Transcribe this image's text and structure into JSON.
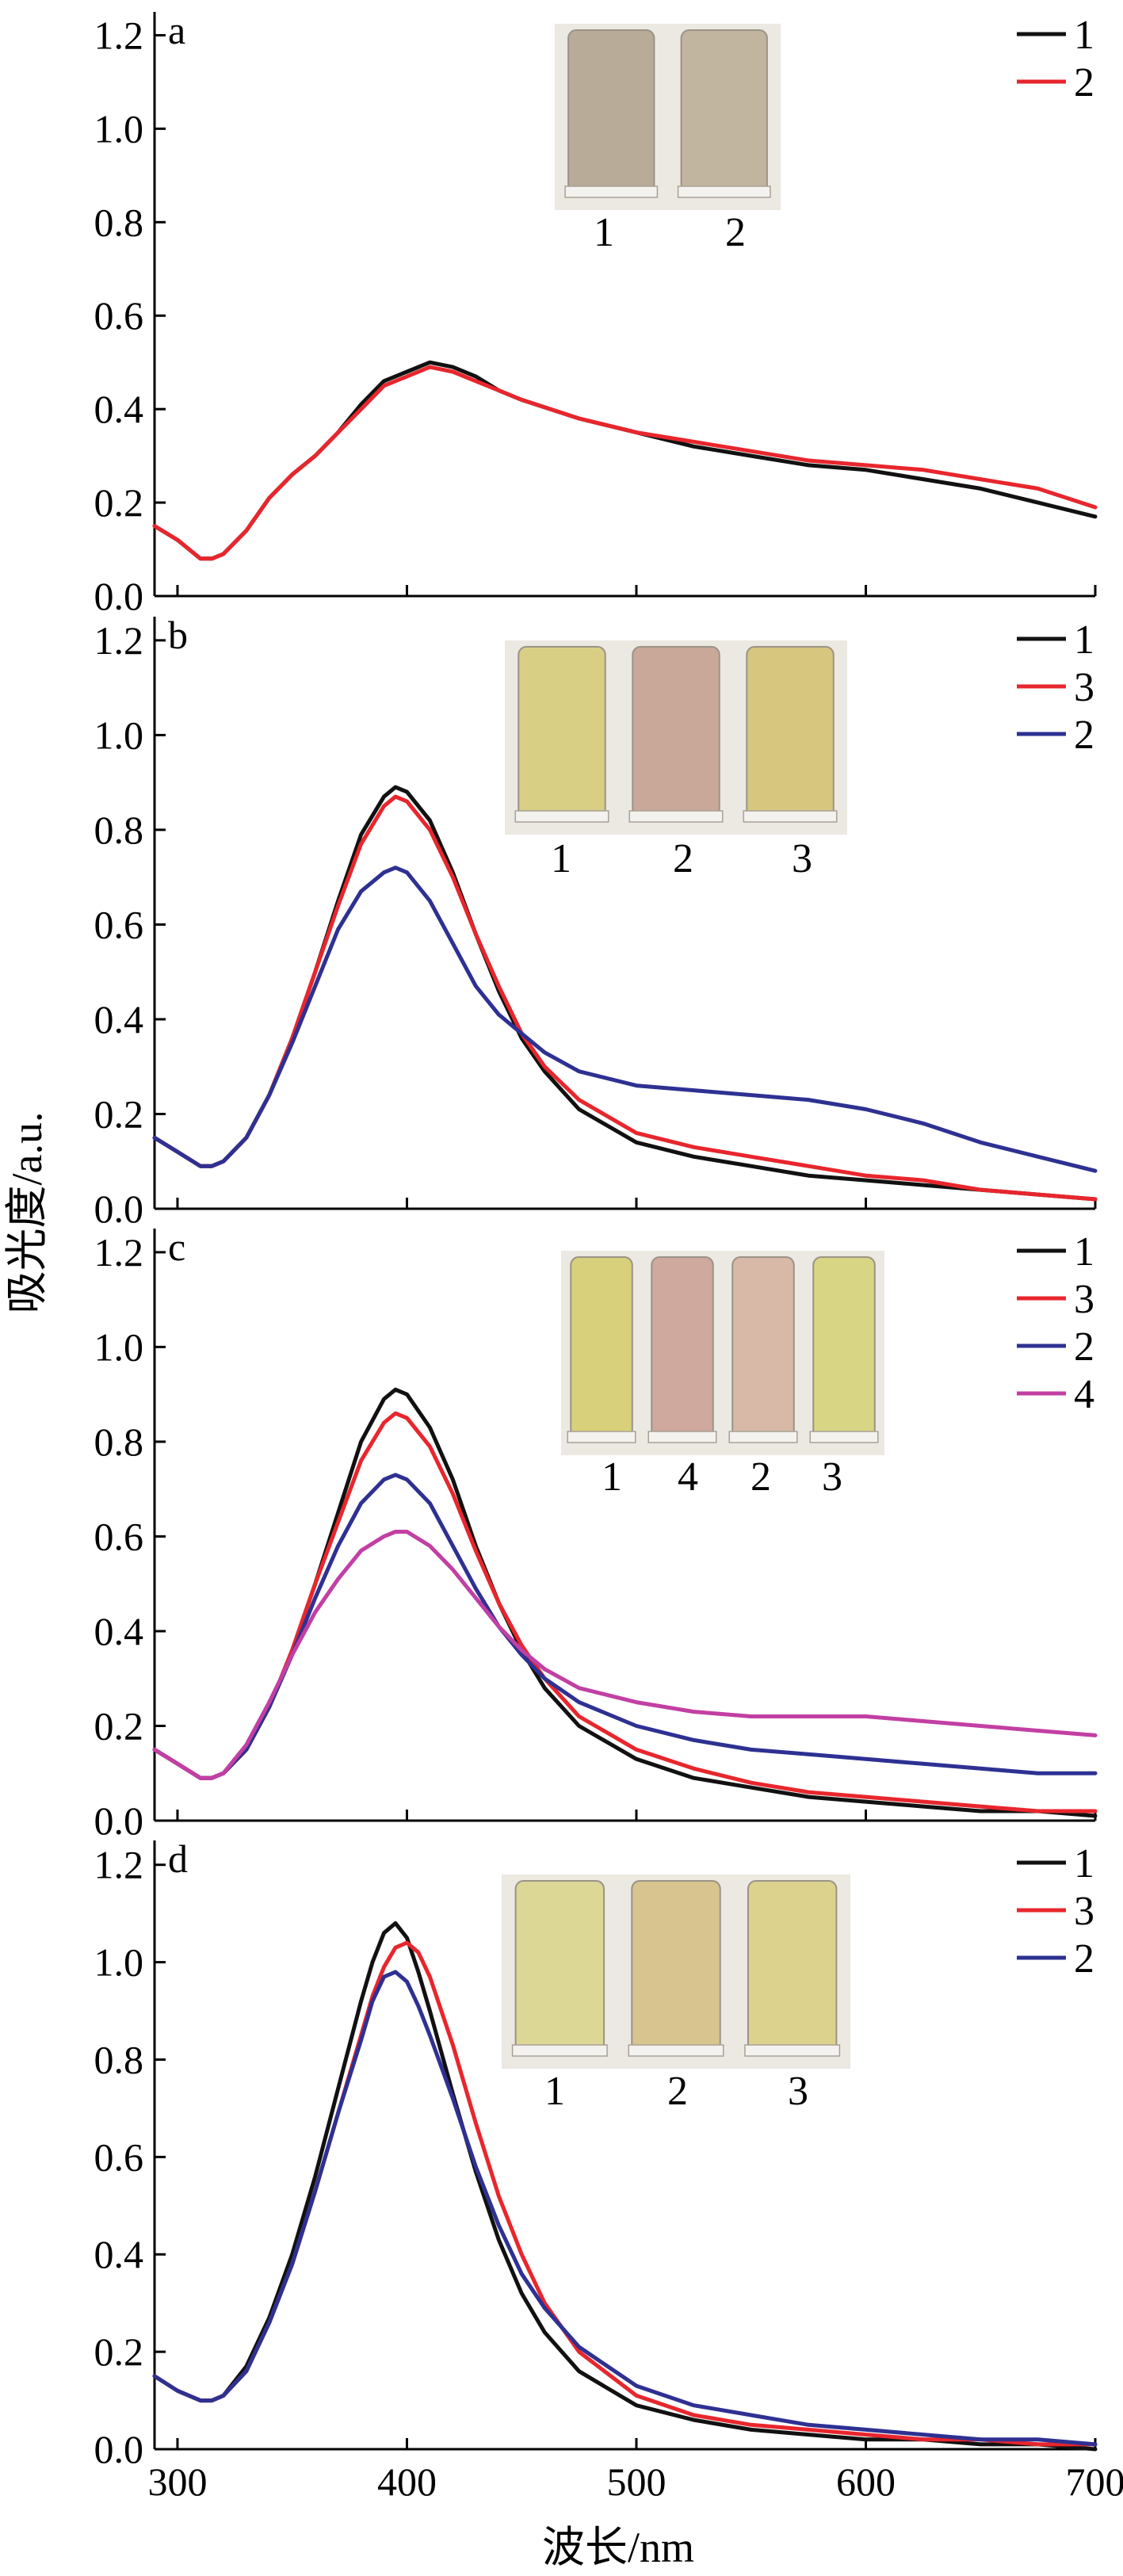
{
  "figure": {
    "xlabel": "波长/nm",
    "ylabel": "吸光度/a.u.",
    "xlim": [
      290,
      700
    ],
    "ylim": [
      0,
      1.25
    ],
    "xticks": [
      "300",
      "400",
      "500",
      "600",
      "700"
    ],
    "yticks": [
      "0.0",
      "0.2",
      "0.4",
      "0.6",
      "0.8",
      "1.0",
      "1.2"
    ],
    "colors": {
      "1": "#111111",
      "2": "#e8262d",
      "3": "#e8262d",
      "2b": "#2e3192",
      "4": "#c23fa3"
    }
  },
  "chart_data": [
    {
      "type": "line",
      "panel": "a",
      "x": [
        290,
        300,
        310,
        315,
        320,
        330,
        340,
        350,
        360,
        370,
        380,
        390,
        400,
        410,
        420,
        430,
        440,
        450,
        475,
        500,
        525,
        550,
        575,
        600,
        625,
        650,
        675,
        700
      ],
      "series": [
        {
          "name": "1",
          "color": "#111111",
          "values": [
            0.15,
            0.12,
            0.08,
            0.08,
            0.09,
            0.14,
            0.21,
            0.26,
            0.3,
            0.35,
            0.41,
            0.46,
            0.48,
            0.5,
            0.49,
            0.47,
            0.44,
            0.42,
            0.38,
            0.35,
            0.32,
            0.3,
            0.28,
            0.27,
            0.25,
            0.23,
            0.2,
            0.17
          ]
        },
        {
          "name": "2",
          "color": "#e8262d",
          "values": [
            0.15,
            0.12,
            0.08,
            0.08,
            0.09,
            0.14,
            0.21,
            0.26,
            0.3,
            0.35,
            0.4,
            0.45,
            0.47,
            0.49,
            0.48,
            0.46,
            0.44,
            0.42,
            0.38,
            0.35,
            0.33,
            0.31,
            0.29,
            0.28,
            0.27,
            0.25,
            0.23,
            0.19
          ]
        }
      ],
      "legend": [
        "1",
        "2"
      ],
      "inset_labels": [
        "1",
        "2"
      ]
    },
    {
      "type": "line",
      "panel": "b",
      "x": [
        290,
        300,
        310,
        315,
        320,
        330,
        340,
        350,
        360,
        370,
        380,
        390,
        395,
        400,
        410,
        420,
        430,
        440,
        450,
        460,
        475,
        500,
        525,
        550,
        575,
        600,
        625,
        650,
        675,
        700
      ],
      "series": [
        {
          "name": "1",
          "color": "#111111",
          "values": [
            0.15,
            0.12,
            0.09,
            0.09,
            0.1,
            0.15,
            0.24,
            0.36,
            0.5,
            0.65,
            0.79,
            0.87,
            0.89,
            0.88,
            0.82,
            0.71,
            0.58,
            0.46,
            0.36,
            0.29,
            0.21,
            0.14,
            0.11,
            0.09,
            0.07,
            0.06,
            0.05,
            0.04,
            0.03,
            0.02
          ]
        },
        {
          "name": "3",
          "color": "#e8262d",
          "values": [
            0.15,
            0.12,
            0.09,
            0.09,
            0.1,
            0.15,
            0.24,
            0.36,
            0.5,
            0.64,
            0.77,
            0.85,
            0.87,
            0.86,
            0.8,
            0.7,
            0.58,
            0.47,
            0.37,
            0.3,
            0.23,
            0.16,
            0.13,
            0.11,
            0.09,
            0.07,
            0.06,
            0.04,
            0.03,
            0.02
          ]
        },
        {
          "name": "2",
          "color": "#2e3192",
          "values": [
            0.15,
            0.12,
            0.09,
            0.09,
            0.1,
            0.15,
            0.24,
            0.35,
            0.47,
            0.59,
            0.67,
            0.71,
            0.72,
            0.71,
            0.65,
            0.56,
            0.47,
            0.41,
            0.37,
            0.33,
            0.29,
            0.26,
            0.25,
            0.24,
            0.23,
            0.21,
            0.18,
            0.14,
            0.11,
            0.08
          ]
        }
      ],
      "legend": [
        "1",
        "3",
        "2"
      ],
      "inset_labels": [
        "1",
        "2",
        "3"
      ]
    },
    {
      "type": "line",
      "panel": "c",
      "x": [
        290,
        300,
        310,
        315,
        320,
        330,
        340,
        350,
        360,
        370,
        380,
        390,
        395,
        400,
        410,
        420,
        430,
        440,
        450,
        460,
        475,
        500,
        525,
        550,
        575,
        600,
        625,
        650,
        675,
        700
      ],
      "series": [
        {
          "name": "1",
          "color": "#111111",
          "values": [
            0.15,
            0.12,
            0.09,
            0.09,
            0.1,
            0.15,
            0.24,
            0.36,
            0.5,
            0.65,
            0.8,
            0.89,
            0.91,
            0.9,
            0.83,
            0.72,
            0.58,
            0.46,
            0.36,
            0.28,
            0.2,
            0.13,
            0.09,
            0.07,
            0.05,
            0.04,
            0.03,
            0.02,
            0.02,
            0.01
          ]
        },
        {
          "name": "3",
          "color": "#e8262d",
          "values": [
            0.15,
            0.12,
            0.09,
            0.09,
            0.1,
            0.15,
            0.24,
            0.36,
            0.5,
            0.63,
            0.76,
            0.84,
            0.86,
            0.85,
            0.79,
            0.69,
            0.57,
            0.46,
            0.37,
            0.3,
            0.22,
            0.15,
            0.11,
            0.08,
            0.06,
            0.05,
            0.04,
            0.03,
            0.02,
            0.02
          ]
        },
        {
          "name": "2",
          "color": "#2e3192",
          "values": [
            0.15,
            0.12,
            0.09,
            0.09,
            0.1,
            0.15,
            0.24,
            0.35,
            0.47,
            0.58,
            0.67,
            0.72,
            0.73,
            0.72,
            0.67,
            0.58,
            0.49,
            0.41,
            0.35,
            0.3,
            0.25,
            0.2,
            0.17,
            0.15,
            0.14,
            0.13,
            0.12,
            0.11,
            0.1,
            0.1
          ]
        },
        {
          "name": "4",
          "color": "#c23fa3",
          "values": [
            0.15,
            0.12,
            0.09,
            0.09,
            0.1,
            0.16,
            0.25,
            0.35,
            0.44,
            0.51,
            0.57,
            0.6,
            0.61,
            0.61,
            0.58,
            0.53,
            0.47,
            0.41,
            0.36,
            0.32,
            0.28,
            0.25,
            0.23,
            0.22,
            0.22,
            0.22,
            0.21,
            0.2,
            0.19,
            0.18
          ]
        }
      ],
      "legend": [
        "1",
        "3",
        "2",
        "4"
      ],
      "inset_labels": [
        "1",
        "4",
        "2",
        "3"
      ]
    },
    {
      "type": "line",
      "panel": "d",
      "x": [
        290,
        300,
        310,
        315,
        320,
        330,
        340,
        350,
        360,
        370,
        380,
        385,
        390,
        395,
        400,
        405,
        410,
        420,
        430,
        440,
        450,
        460,
        475,
        500,
        525,
        550,
        575,
        600,
        625,
        650,
        675,
        700
      ],
      "series": [
        {
          "name": "1",
          "color": "#111111",
          "values": [
            0.15,
            0.12,
            0.1,
            0.1,
            0.11,
            0.17,
            0.27,
            0.4,
            0.56,
            0.74,
            0.92,
            1.0,
            1.06,
            1.08,
            1.05,
            0.98,
            0.9,
            0.73,
            0.57,
            0.43,
            0.32,
            0.24,
            0.16,
            0.09,
            0.06,
            0.04,
            0.03,
            0.02,
            0.02,
            0.01,
            0.01,
            0.0
          ]
        },
        {
          "name": "3",
          "color": "#e8262d",
          "values": [
            0.15,
            0.12,
            0.1,
            0.1,
            0.11,
            0.16,
            0.26,
            0.38,
            0.53,
            0.69,
            0.85,
            0.93,
            0.99,
            1.03,
            1.04,
            1.02,
            0.97,
            0.83,
            0.67,
            0.52,
            0.4,
            0.3,
            0.2,
            0.11,
            0.07,
            0.05,
            0.04,
            0.03,
            0.02,
            0.02,
            0.01,
            0.01
          ]
        },
        {
          "name": "2",
          "color": "#2e3192",
          "values": [
            0.15,
            0.12,
            0.1,
            0.1,
            0.11,
            0.16,
            0.26,
            0.38,
            0.53,
            0.69,
            0.84,
            0.92,
            0.97,
            0.98,
            0.96,
            0.91,
            0.85,
            0.72,
            0.58,
            0.46,
            0.36,
            0.29,
            0.21,
            0.13,
            0.09,
            0.07,
            0.05,
            0.04,
            0.03,
            0.02,
            0.02,
            0.01
          ]
        }
      ],
      "legend": [
        "1",
        "3",
        "2"
      ],
      "inset_labels": [
        "1",
        "2",
        "3"
      ]
    }
  ]
}
